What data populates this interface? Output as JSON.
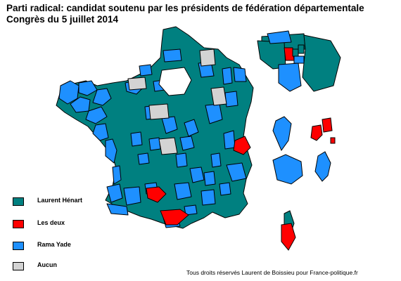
{
  "title": {
    "line1": "Parti radical: candidat soutenu par les présidents de fédération départementale",
    "line2": "Congrès du 5 juillet 2014"
  },
  "legend": [
    {
      "label": "Laurent Hénart",
      "color": "#008080"
    },
    {
      "label": "Les deux",
      "color": "#ff0000"
    },
    {
      "label": "Rama Yade",
      "color": "#1e90ff"
    },
    {
      "label": "Aucun",
      "color": "#d3d3d3"
    }
  ],
  "credit": "Tous droits réservés Laurent de Boissieu pour France-politique.fr",
  "colors": {
    "henart": "#008080",
    "deux": "#ff0000",
    "yade": "#1e90ff",
    "aucun": "#d3d3d3",
    "border": "#000000"
  }
}
